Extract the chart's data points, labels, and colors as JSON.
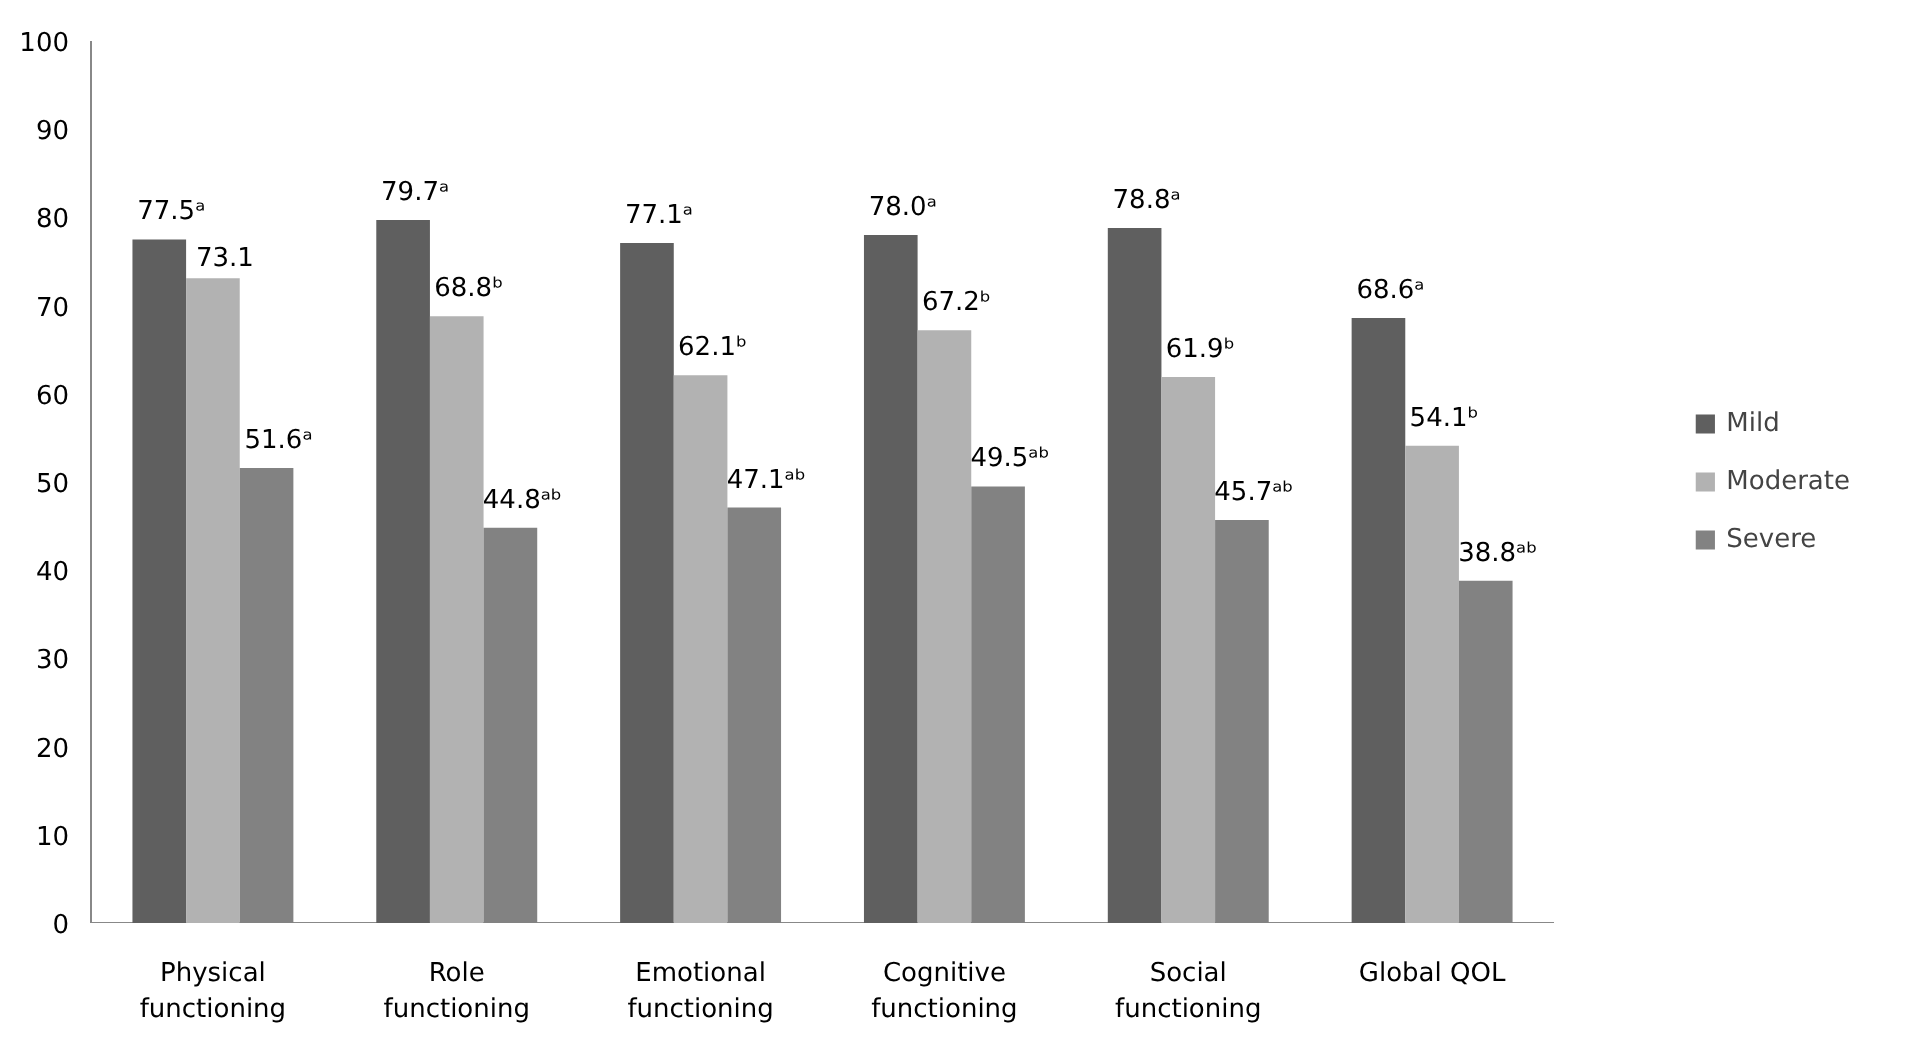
{
  "chart_data": {
    "type": "bar",
    "categories": [
      "Physical functioning",
      "Role functioning",
      "Emotional functioning",
      "Cognitive functioning",
      "Social functioning",
      "Global QOL"
    ],
    "series": [
      {
        "name": "Mild",
        "color": "#5f5f5f",
        "values": [
          77.5,
          79.7,
          77.1,
          78.0,
          78.8,
          68.6
        ],
        "value_labels": [
          "77.5ᵃ",
          "79.7ᵃ",
          "77.1ᵃ",
          "78.0ᵃ",
          "78.8ᵃ",
          "68.6ᵃ"
        ]
      },
      {
        "name": "Moderate",
        "color": "#b2b2b2",
        "values": [
          73.1,
          68.8,
          62.1,
          67.2,
          61.9,
          54.1
        ],
        "value_labels": [
          "73.1",
          "68.8ᵇ",
          "62.1ᵇ",
          "67.2ᵇ",
          "61.9ᵇ",
          "54.1ᵇ"
        ]
      },
      {
        "name": "Severe",
        "color": "#828282",
        "values": [
          51.6,
          44.8,
          47.1,
          49.5,
          45.7,
          38.8
        ],
        "value_labels": [
          "51.6ᵃ",
          "44.8ᵃᵇ",
          "47.1ᵃᵇ",
          "49.5ᵃᵇ",
          "45.7ᵃᵇ",
          "38.8ᵃᵇ"
        ]
      }
    ],
    "ylim": [
      0,
      100
    ],
    "yticks": [
      0,
      10,
      20,
      30,
      40,
      50,
      60,
      70,
      80,
      90,
      100
    ],
    "grid": false,
    "legend": "right"
  }
}
